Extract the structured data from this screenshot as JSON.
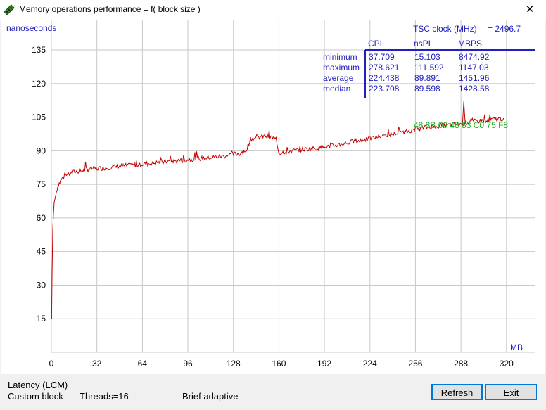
{
  "window": {
    "title": "Memory operations performance = f( block size )",
    "close_symbol": "✕"
  },
  "chart_data": {
    "type": "line",
    "ylabel": "nanoseconds",
    "xlabel": "MB",
    "ylim": [
      0,
      135
    ],
    "xlim": [
      0,
      330
    ],
    "yticks": [
      15,
      30,
      45,
      60,
      75,
      90,
      105,
      120,
      135
    ],
    "xticks": [
      0,
      32,
      64,
      96,
      128,
      160,
      192,
      224,
      256,
      288,
      320
    ],
    "grid": true,
    "series": [
      {
        "color": "#c00000",
        "x": [
          0.2,
          0.5,
          1,
          1.5,
          2,
          3,
          4,
          5,
          6,
          7,
          8,
          10,
          12,
          14,
          16,
          20,
          24,
          28,
          32,
          40,
          48,
          56,
          64,
          72,
          80,
          85,
          88,
          96,
          104,
          112,
          120,
          128,
          136,
          140,
          145,
          150,
          155,
          158,
          160,
          164,
          170,
          176,
          184,
          192,
          200,
          208,
          216,
          224,
          232,
          240,
          248,
          256,
          264,
          272,
          280,
          288,
          296,
          304,
          312,
          318
        ],
        "y": [
          15,
          35,
          55,
          62,
          67,
          70,
          73,
          75,
          76,
          77,
          78,
          79,
          79.5,
          80,
          80.5,
          81,
          81.5,
          82,
          82,
          82.5,
          83,
          83.5,
          84,
          84.5,
          85,
          85.5,
          85.5,
          86,
          86.5,
          87,
          87.5,
          88.5,
          89,
          95,
          96,
          96.5,
          96,
          95,
          89,
          89.5,
          90,
          90.5,
          91,
          91.5,
          92.5,
          93.5,
          94.5,
          95.5,
          96.5,
          97.5,
          98.5,
          99.5,
          100.5,
          101,
          101.5,
          102,
          103,
          103.5,
          104,
          104.5
        ]
      }
    ]
  },
  "stats": {
    "tsc_label": "TSC clock (MHz)",
    "tsc_value": "= 2496.7",
    "columns": [
      "CPI",
      "nsPI",
      "MBPS"
    ],
    "rows": [
      {
        "label": "minimum",
        "cpi": "37.709",
        "nspi": "15.103",
        "mbps": "8474.92"
      },
      {
        "label": "maximum",
        "cpi": "278.621",
        "nspi": "111.592",
        "mbps": "1147.03"
      },
      {
        "label": "average",
        "cpi": "224.438",
        "nspi": "89.891",
        "mbps": "1451.96"
      },
      {
        "label": "median",
        "cpi": "223.708",
        "nspi": "89.598",
        "mbps": "1428.58"
      }
    ],
    "hex_line": "48  8B  00  48  83  C0  75  F8",
    "text_color": "#2020c0",
    "hex_color": "#20b020"
  },
  "status": {
    "line1": "Latency (LCM)",
    "line2_a": "Custom block",
    "line2_b": "Threads=16",
    "line2_c": "Brief adaptive"
  },
  "buttons": {
    "refresh": "Refresh",
    "exit": "Exit"
  }
}
